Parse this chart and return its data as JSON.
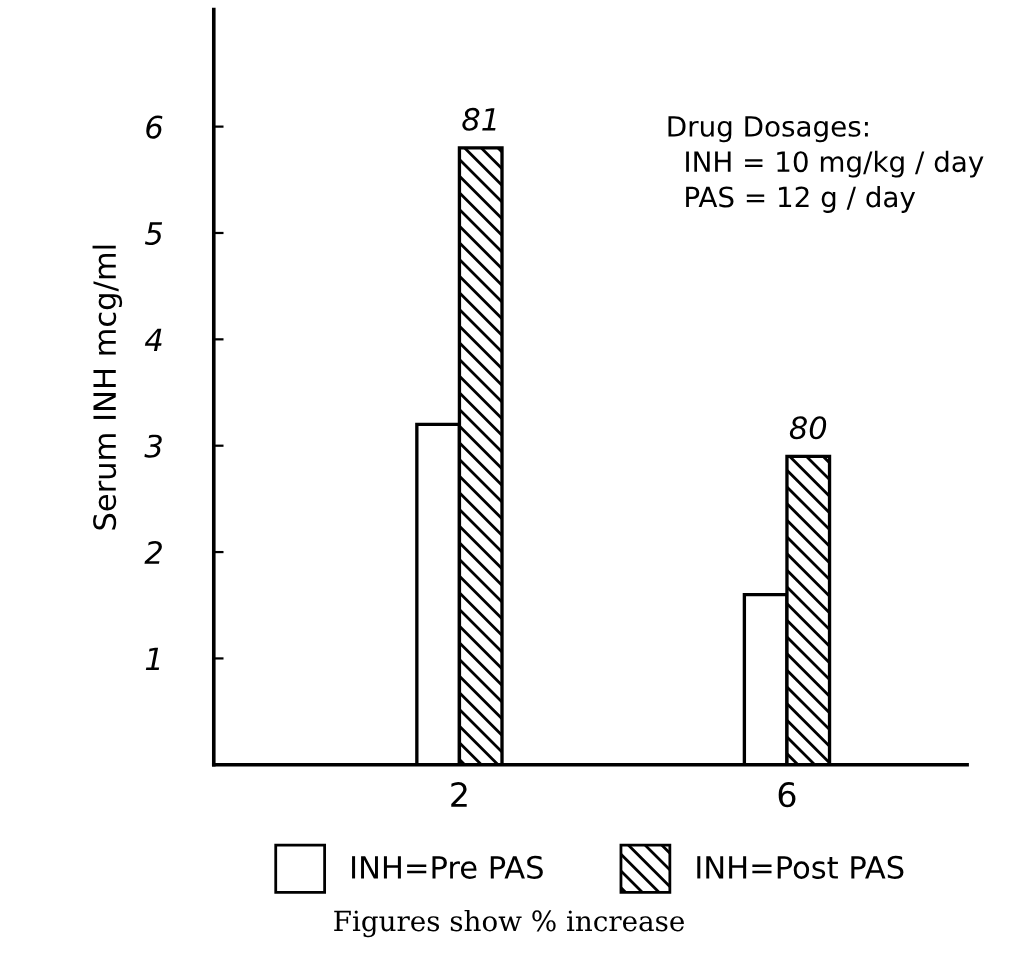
{
  "chart_data": {
    "type": "bar",
    "ylabel": "Serum INH mcg/ml",
    "categories": [
      "2",
      "6"
    ],
    "series": [
      {
        "name": "INH=Pre PAS",
        "color": "#ffffff",
        "values": [
          3.2,
          1.6
        ]
      },
      {
        "name": "INH=Post PAS",
        "color": "#000000",
        "values": [
          5.8,
          2.9
        ]
      }
    ],
    "ylim": [
      0,
      7.1
    ],
    "yticks": [
      1,
      2,
      3,
      4,
      5,
      6
    ],
    "grid": false,
    "legend": "bottom",
    "annotations": [
      {
        "text": "81",
        "x": "2",
        "y": 5.8
      },
      {
        "text": "80",
        "x": "6",
        "y": 2.9
      },
      "Drug Dosages:\n  INH = 10 mg/kg / day\n  PAS = 12 g / day",
      "Figures show % increase"
    ]
  }
}
